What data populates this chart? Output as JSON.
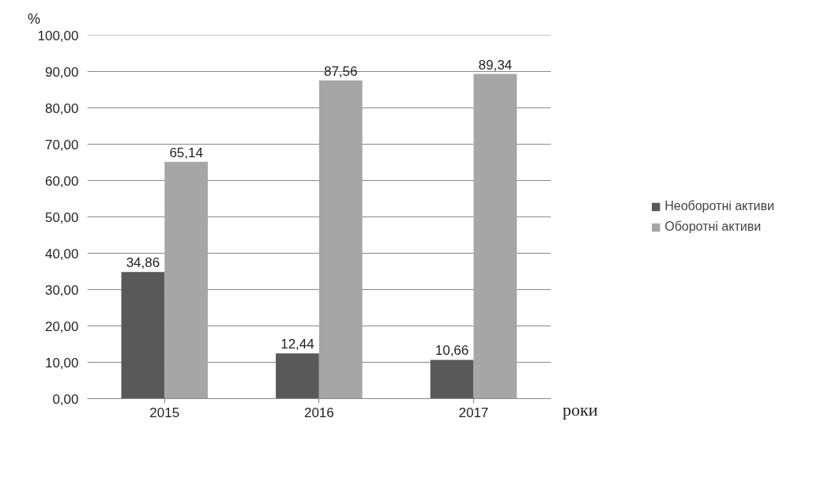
{
  "chart_data": {
    "type": "bar",
    "ylabel": "%",
    "xlabel": "роки",
    "categories": [
      "2015",
      "2016",
      "2017"
    ],
    "series": [
      {
        "name": "Необоротні активи",
        "color": "#595959",
        "values": [
          34.86,
          12.44,
          10.66
        ],
        "value_labels": [
          "34,86",
          "12,44",
          "10,66"
        ]
      },
      {
        "name": "Оборотні активи",
        "color": "#a6a6a6",
        "values": [
          65.14,
          87.56,
          89.34
        ],
        "value_labels": [
          "65,14",
          "87,56",
          "89,34"
        ]
      }
    ],
    "ylim": [
      0,
      100
    ],
    "yticks": [
      {
        "value": 0,
        "label": "0,00"
      },
      {
        "value": 10,
        "label": "10,00"
      },
      {
        "value": 20,
        "label": "20,00"
      },
      {
        "value": 30,
        "label": "30,00"
      },
      {
        "value": 40,
        "label": "40,00"
      },
      {
        "value": 50,
        "label": "50,00"
      },
      {
        "value": 60,
        "label": "60,00"
      },
      {
        "value": 70,
        "label": "70,00"
      },
      {
        "value": 80,
        "label": "80,00"
      },
      {
        "value": 90,
        "label": "90,00"
      },
      {
        "value": 100,
        "label": "100,00"
      }
    ],
    "grid": "y",
    "legend": "right"
  }
}
